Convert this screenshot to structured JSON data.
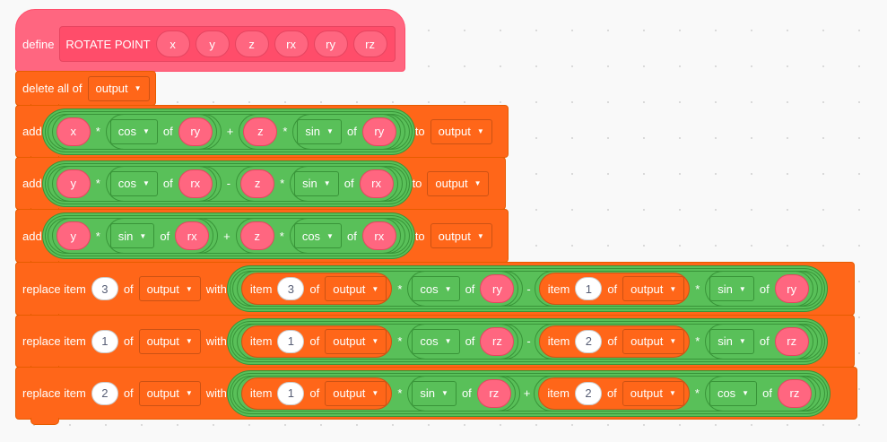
{
  "colors": {
    "background": "#f9f9f9",
    "custom_block": "#ff6680",
    "list_block": "#ff6619",
    "operator_block": "#59c059"
  },
  "hat": {
    "define": "define",
    "name": "ROTATE POINT",
    "params": [
      "x",
      "y",
      "z",
      "rx",
      "ry",
      "rz"
    ]
  },
  "delete_all": {
    "label": "delete all of",
    "list": "output"
  },
  "common": {
    "add": "add",
    "to": "to",
    "of": "of",
    "item": "item",
    "replace_item": "replace item",
    "with": "with",
    "times": "*",
    "plus": "+",
    "minus": "-",
    "list": "output",
    "cos": "cos",
    "sin": "sin",
    "x": "x",
    "y": "y",
    "z": "z",
    "rx": "rx",
    "ry": "ry",
    "rz": "rz"
  },
  "numbers": {
    "one": "1",
    "two": "2",
    "three": "3"
  },
  "icons": {
    "dropdown_caret": "caret-down-icon"
  }
}
